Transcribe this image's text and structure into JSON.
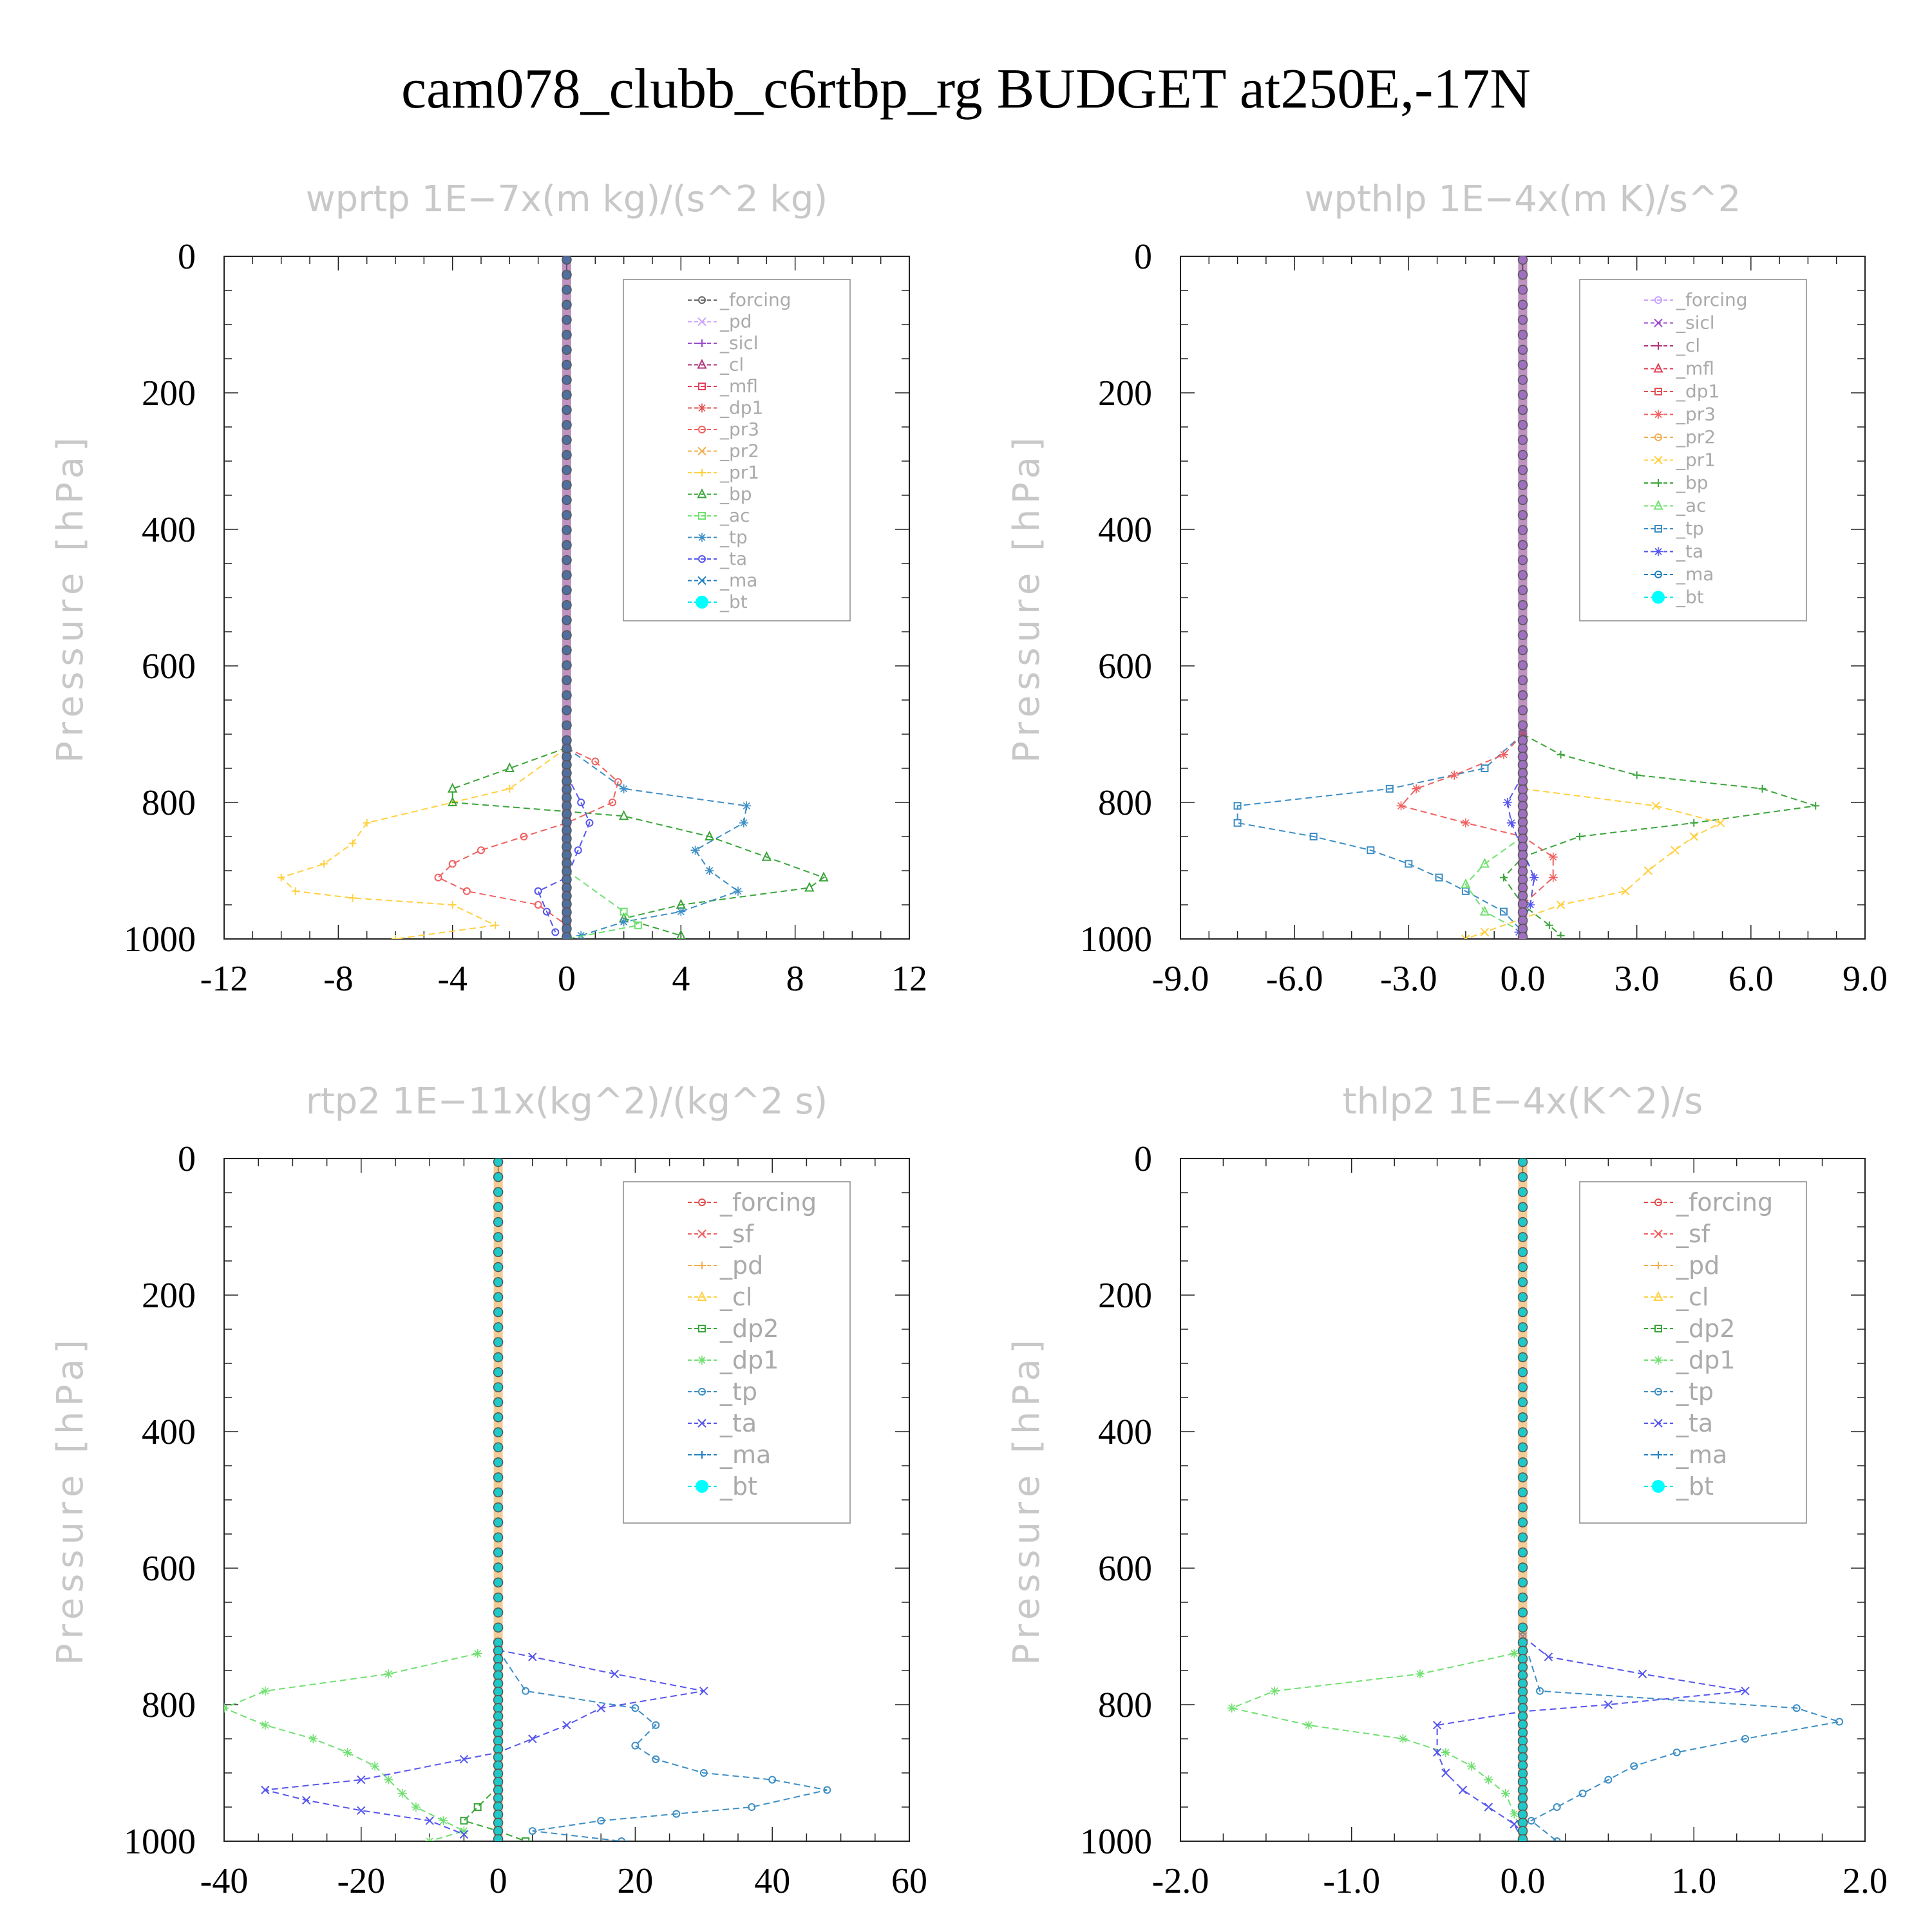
{
  "title": "cam078_clubb_c6rtbp_rg  BUDGET at250E,-17N",
  "chart_data": [
    {
      "type": "line",
      "title": "wprtp   1E−7x(m kg)/(s^2 kg)",
      "ylabel": "Pressure [hPa]",
      "xlim": [
        -12,
        12
      ],
      "ylim": [
        1000,
        0
      ],
      "xticks": [
        "-12",
        "-8",
        "-4",
        "0",
        "4",
        "8",
        "12"
      ],
      "yticks": [
        "0",
        "200",
        "400",
        "600",
        "800",
        "1000"
      ],
      "legend": [
        "_forcing",
        "_pd",
        "_sicl",
        "_cl",
        "_mfl",
        "_dp1",
        "_pr3",
        "_pr2",
        "_pr1",
        "_bp",
        "_ac",
        "_tp",
        "_ta",
        "_ma",
        "_bt"
      ],
      "legend_colors": [
        "#666666",
        "#c9a3ff",
        "#9b4ad0",
        "#b0307a",
        "#e0405a",
        "#e05050",
        "#f06060",
        "#f0b050",
        "#ffd040",
        "#3aa53a",
        "#70e070",
        "#3d8ec4",
        "#5555ee",
        "#2080c0",
        "#00e5ee"
      ],
      "series": [
        {
          "name": "_pr1",
          "points": [
            [
              0,
              720
            ],
            [
              -2,
              780
            ],
            [
              -4,
              800
            ],
            [
              -7,
              830
            ],
            [
              -7.5,
              860
            ],
            [
              -8.5,
              890
            ],
            [
              -10,
              910
            ],
            [
              -9.5,
              930
            ],
            [
              -7.5,
              940
            ],
            [
              -4,
              950
            ],
            [
              -2.5,
              980
            ],
            [
              -6,
              1000
            ]
          ]
        },
        {
          "name": "_bp",
          "points": [
            [
              0,
              720
            ],
            [
              -2,
              750
            ],
            [
              -4,
              780
            ],
            [
              -4,
              800
            ],
            [
              2,
              820
            ],
            [
              5,
              850
            ],
            [
              7,
              880
            ],
            [
              9,
              910
            ],
            [
              8.5,
              925
            ],
            [
              4,
              950
            ],
            [
              2,
              970
            ],
            [
              4,
              995
            ]
          ]
        },
        {
          "name": "_pr3",
          "points": [
            [
              0,
              720
            ],
            [
              1,
              740
            ],
            [
              1.8,
              770
            ],
            [
              1.6,
              800
            ],
            [
              0,
              830
            ],
            [
              -1.5,
              850
            ],
            [
              -3,
              870
            ],
            [
              -4,
              890
            ],
            [
              -4.5,
              910
            ],
            [
              -3.5,
              930
            ],
            [
              -1,
              950
            ],
            [
              0,
              980
            ]
          ]
        },
        {
          "name": "_tp",
          "points": [
            [
              0,
              720
            ],
            [
              2,
              780
            ],
            [
              6.3,
              805
            ],
            [
              6.2,
              830
            ],
            [
              4.5,
              870
            ],
            [
              5,
              900
            ],
            [
              6,
              930
            ],
            [
              4,
              960
            ],
            [
              2,
              975
            ],
            [
              0.5,
              995
            ]
          ]
        },
        {
          "name": "_ta",
          "points": [
            [
              0,
              760
            ],
            [
              0.5,
              800
            ],
            [
              0.8,
              830
            ],
            [
              0.4,
              870
            ],
            [
              0,
              910
            ],
            [
              -1,
              930
            ],
            [
              -0.7,
              960
            ],
            [
              -0.4,
              990
            ]
          ]
        },
        {
          "name": "_ac",
          "points": [
            [
              0,
              900
            ],
            [
              2,
              960
            ],
            [
              2.5,
              980
            ],
            [
              0,
              1000
            ]
          ]
        }
      ]
    },
    {
      "type": "line",
      "title": "wpthlp   1E−4x(m K)/s^2",
      "ylabel": "Pressure [hPa]",
      "xlim": [
        -9,
        9
      ],
      "ylim": [
        1000,
        0
      ],
      "xticks": [
        "-9.0",
        "-6.0",
        "-3.0",
        "0.0",
        "3.0",
        "6.0",
        "9.0"
      ],
      "yticks": [
        "0",
        "200",
        "400",
        "600",
        "800",
        "1000"
      ],
      "legend": [
        "_forcing",
        "_sicl",
        "_cl",
        "_mfl",
        "_dp1",
        "_pr3",
        "_pr2",
        "_pr1",
        "_bp",
        "_ac",
        "_tp",
        "_ta",
        "_ma",
        "_bt"
      ],
      "legend_colors": [
        "#c9a3ff",
        "#9b4ad0",
        "#b0307a",
        "#e0405a",
        "#e05050",
        "#f06060",
        "#f0b050",
        "#ffd040",
        "#3aa53a",
        "#70e070",
        "#3d8ec4",
        "#5555ee",
        "#2080c0",
        "#00e5ee"
      ],
      "series": [
        {
          "name": "_tp",
          "points": [
            [
              0,
              700
            ],
            [
              -1,
              750
            ],
            [
              -3.5,
              780
            ],
            [
              -7.5,
              805
            ],
            [
              -7.5,
              830
            ],
            [
              -5.5,
              850
            ],
            [
              -4,
              870
            ],
            [
              -3,
              890
            ],
            [
              -2.2,
              910
            ],
            [
              -1.5,
              930
            ],
            [
              -0.5,
              960
            ],
            [
              0,
              990
            ]
          ]
        },
        {
          "name": "_bp",
          "points": [
            [
              0,
              700
            ],
            [
              1,
              730
            ],
            [
              3,
              760
            ],
            [
              6.3,
              780
            ],
            [
              7.7,
              805
            ],
            [
              4.5,
              830
            ],
            [
              1.5,
              850
            ],
            [
              0,
              880
            ],
            [
              -0.5,
              910
            ],
            [
              0,
              950
            ],
            [
              0.7,
              980
            ],
            [
              1,
              995
            ]
          ]
        },
        {
          "name": "_pr1",
          "points": [
            [
              0,
              780
            ],
            [
              3.5,
              805
            ],
            [
              5.2,
              830
            ],
            [
              4.5,
              850
            ],
            [
              4,
              870
            ],
            [
              3.3,
              900
            ],
            [
              2.7,
              930
            ],
            [
              1,
              950
            ],
            [
              0,
              970
            ],
            [
              -1,
              990
            ],
            [
              -1.5,
              1000
            ]
          ]
        },
        {
          "name": "_pr3",
          "points": [
            [
              0,
              700
            ],
            [
              -0.5,
              730
            ],
            [
              -1.8,
              760
            ],
            [
              -2.8,
              780
            ],
            [
              -3.2,
              805
            ],
            [
              -1.5,
              830
            ],
            [
              0,
              850
            ],
            [
              0.8,
              880
            ],
            [
              0.8,
              910
            ],
            [
              0,
              950
            ]
          ]
        },
        {
          "name": "_ta",
          "points": [
            [
              0,
              760
            ],
            [
              -0.4,
              800
            ],
            [
              -0.3,
              830
            ],
            [
              0,
              870
            ],
            [
              0.3,
              910
            ],
            [
              0.2,
              950
            ],
            [
              -0.1,
              990
            ]
          ]
        },
        {
          "name": "_ac",
          "points": [
            [
              0,
              850
            ],
            [
              -1,
              890
            ],
            [
              -1.5,
              920
            ],
            [
              -1,
              960
            ],
            [
              0,
              990
            ]
          ]
        }
      ]
    },
    {
      "type": "line",
      "title": "rtp2   1E−11x(kg^2)/(kg^2 s)",
      "ylabel": "Pressure [hPa]",
      "xlim": [
        -40,
        60
      ],
      "ylim": [
        1000,
        0
      ],
      "xticks": [
        "-40",
        "-20",
        "0",
        "20",
        "40",
        "60"
      ],
      "yticks": [
        "0",
        "200",
        "400",
        "600",
        "800",
        "1000"
      ],
      "legend": [
        "_forcing",
        "_sf",
        "_pd",
        "_cl",
        "_dp2",
        "_dp1",
        "_tp",
        "_ta",
        "_ma",
        "_bt"
      ],
      "legend_colors": [
        "#e05050",
        "#f06060",
        "#f0b050",
        "#ffd040",
        "#3aa53a",
        "#70e070",
        "#3d8ec4",
        "#5555ee",
        "#2080c0",
        "#00e5ee"
      ],
      "series": [
        {
          "name": "_dp1",
          "points": [
            [
              -3,
              725
            ],
            [
              -16,
              755
            ],
            [
              -34,
              780
            ],
            [
              -40,
              805
            ],
            [
              -34,
              830
            ],
            [
              -27,
              850
            ],
            [
              -22,
              870
            ],
            [
              -18,
              890
            ],
            [
              -16,
              910
            ],
            [
              -14,
              930
            ],
            [
              -12,
              950
            ],
            [
              -8,
              970
            ],
            [
              -5,
              985
            ],
            [
              -10,
              1000
            ]
          ]
        },
        {
          "name": "_tp",
          "points": [
            [
              0,
              720
            ],
            [
              4,
              780
            ],
            [
              20,
              805
            ],
            [
              23,
              830
            ],
            [
              20,
              860
            ],
            [
              23,
              880
            ],
            [
              30,
              900
            ],
            [
              40,
              910
            ],
            [
              48,
              925
            ],
            [
              37,
              950
            ],
            [
              26,
              960
            ],
            [
              15,
              970
            ],
            [
              5,
              985
            ],
            [
              18,
              1000
            ]
          ]
        },
        {
          "name": "_ta",
          "points": [
            [
              0,
              720
            ],
            [
              5,
              730
            ],
            [
              17,
              755
            ],
            [
              30,
              780
            ],
            [
              15,
              805
            ],
            [
              10,
              830
            ],
            [
              5,
              850
            ],
            [
              0,
              870
            ],
            [
              -5,
              880
            ],
            [
              -20,
              910
            ],
            [
              -34,
              925
            ],
            [
              -28,
              940
            ],
            [
              -20,
              955
            ],
            [
              -10,
              970
            ],
            [
              -5,
              990
            ]
          ]
        },
        {
          "name": "_dp2",
          "points": [
            [
              0,
              920
            ],
            [
              -3,
              950
            ],
            [
              -5,
              970
            ],
            [
              0,
              985
            ],
            [
              4,
              1000
            ]
          ]
        }
      ]
    },
    {
      "type": "line",
      "title": "thlp2   1E−4x(K^2)/s",
      "ylabel": "Pressure [hPa]",
      "xlim": [
        -2,
        2
      ],
      "ylim": [
        1000,
        0
      ],
      "xticks": [
        "-2.0",
        "-1.0",
        "0.0",
        "1.0",
        "2.0"
      ],
      "yticks": [
        "0",
        "200",
        "400",
        "600",
        "800",
        "1000"
      ],
      "legend": [
        "_forcing",
        "_sf",
        "_pd",
        "_cl",
        "_dp2",
        "_dp1",
        "_tp",
        "_ta",
        "_ma",
        "_bt"
      ],
      "legend_colors": [
        "#e05050",
        "#f06060",
        "#f0b050",
        "#ffd040",
        "#3aa53a",
        "#70e070",
        "#3d8ec4",
        "#5555ee",
        "#2080c0",
        "#00e5ee"
      ],
      "series": [
        {
          "name": "_dp1",
          "points": [
            [
              -0.05,
              725
            ],
            [
              -0.6,
              755
            ],
            [
              -1.45,
              780
            ],
            [
              -1.7,
              805
            ],
            [
              -1.25,
              830
            ],
            [
              -0.7,
              850
            ],
            [
              -0.45,
              870
            ],
            [
              -0.3,
              890
            ],
            [
              -0.2,
              910
            ],
            [
              -0.1,
              930
            ],
            [
              -0.05,
              960
            ],
            [
              0,
              990
            ]
          ]
        },
        {
          "name": "_tp",
          "points": [
            [
              0,
              700
            ],
            [
              0.1,
              780
            ],
            [
              1.6,
              805
            ],
            [
              1.85,
              825
            ],
            [
              1.3,
              850
            ],
            [
              0.9,
              870
            ],
            [
              0.65,
              890
            ],
            [
              0.5,
              910
            ],
            [
              0.35,
              930
            ],
            [
              0.2,
              950
            ],
            [
              0.05,
              970
            ],
            [
              0.2,
              1000
            ]
          ]
        },
        {
          "name": "_ta",
          "points": [
            [
              0,
              700
            ],
            [
              0.15,
              730
            ],
            [
              0.7,
              755
            ],
            [
              1.3,
              780
            ],
            [
              0.5,
              800
            ],
            [
              0,
              810
            ],
            [
              -0.5,
              830
            ],
            [
              -0.5,
              870
            ],
            [
              -0.45,
              900
            ],
            [
              -0.35,
              925
            ],
            [
              -0.2,
              950
            ],
            [
              -0.05,
              975
            ],
            [
              0,
              1000
            ]
          ]
        }
      ]
    }
  ]
}
